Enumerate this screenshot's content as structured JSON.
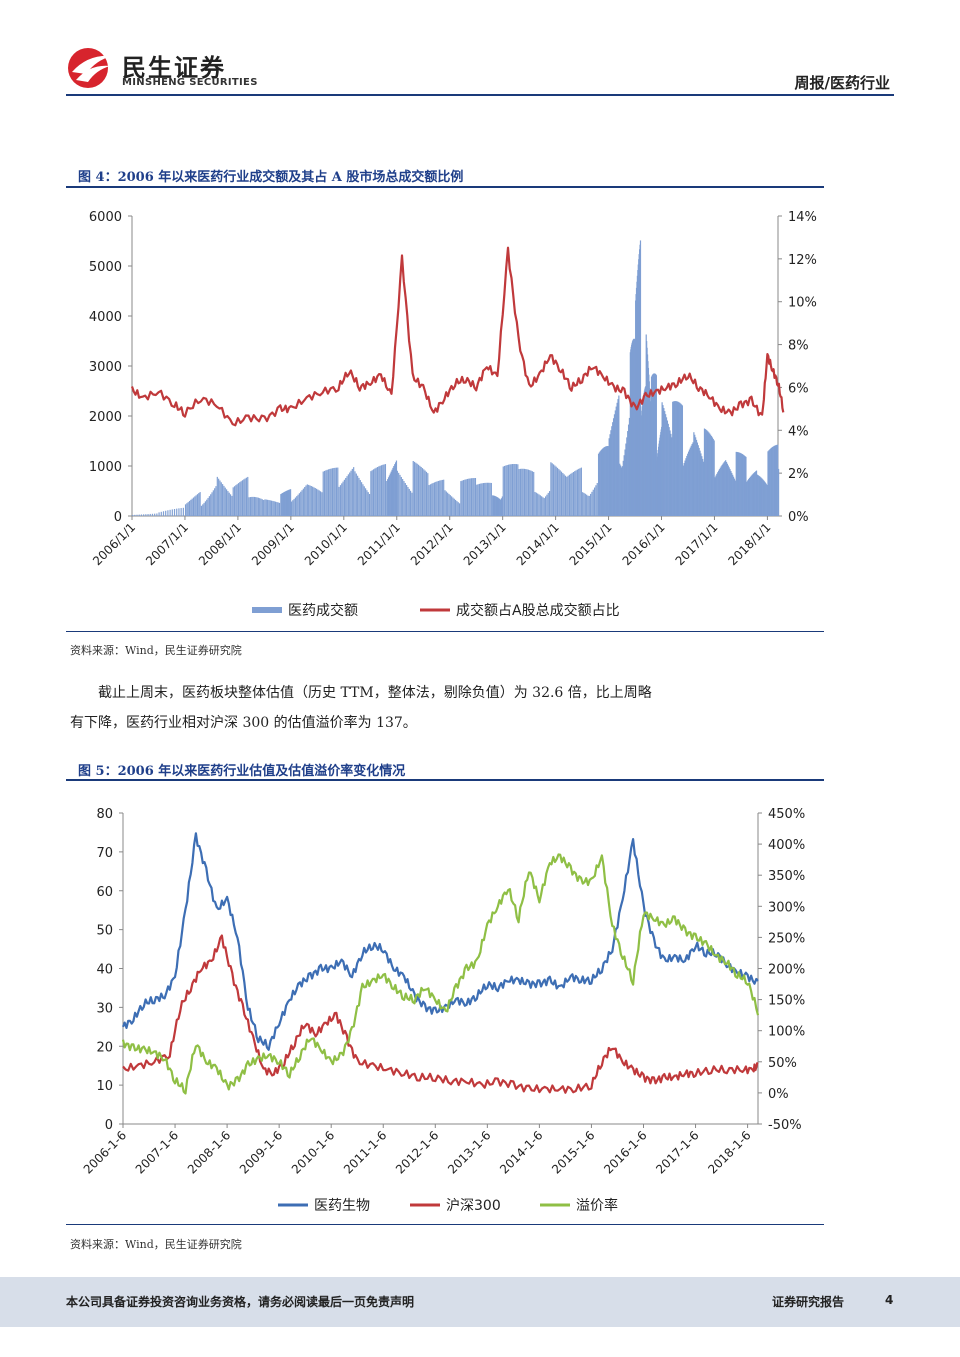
{
  "header": {
    "company_cn": "民生证券",
    "company_en": "MINSHENG SECURITIES",
    "report_type": "周报/医药行业"
  },
  "figure4": {
    "title": "图 4：2006 年以来医药行业成交额及其占 A 股市场总成交额比例",
    "source": "资料来源：Wind，民生证券研究院"
  },
  "paragraph": {
    "line1": "截止上周末，医药板块整体估值（历史 TTM，整体法，剔除负值）为 32.6 倍，比上周略",
    "line2": "有下降，医药行业相对沪深 300 的估值溢价率为 137。"
  },
  "figure5": {
    "title": "图 5：2006 年以来医药行业估值及估值溢价率变化情况",
    "source": "资料来源：Wind，民生证券研究院"
  },
  "footer": {
    "disclaimer": "本公司具备证券投资咨询业务资格，请务必阅读最后一页免责声明",
    "doc_type": "证券研究报告",
    "page_number": "4"
  },
  "colors": {
    "brand_red": "#d7242d",
    "navy": "#1a3a7a",
    "bar_blue": "#7f9fd3",
    "line_red": "#c0393b",
    "line_blue": "#3d6eb4",
    "line_green": "#8fbf45"
  },
  "chart_data": [
    {
      "type": "bar+line",
      "title": "图 4：2006 年以来医药行业成交额及其占 A 股市场总成交额比例",
      "x_tick_labels": [
        "2006/1/1",
        "2007/1/1",
        "2008/1/1",
        "2009/1/1",
        "2010/1/1",
        "2011/1/1",
        "2012/1/1",
        "2013/1/1",
        "2014/1/1",
        "2015/1/1",
        "2016/1/1",
        "2017/1/1",
        "2018/1/1"
      ],
      "left_axis": {
        "min": 0,
        "max": 6000,
        "ticks": [
          "0",
          "1000",
          "2000",
          "3000",
          "4000",
          "5000",
          "6000"
        ]
      },
      "right_axis": {
        "min": 0,
        "max": 0.14,
        "ticks": [
          "0%",
          "2%",
          "4%",
          "6%",
          "8%",
          "10%",
          "12%",
          "14%"
        ]
      },
      "series": [
        {
          "name": "医药成交额",
          "kind": "bar",
          "axis": "left",
          "x": [
            2006.0,
            2006.5,
            2007.0,
            2007.3,
            2007.6,
            2007.9,
            2008.2,
            2008.5,
            2008.8,
            2009.0,
            2009.3,
            2009.6,
            2009.9,
            2010.2,
            2010.5,
            2010.8,
            2011.0,
            2011.3,
            2011.6,
            2011.9,
            2012.2,
            2012.5,
            2012.8,
            2013.0,
            2013.3,
            2013.6,
            2013.9,
            2014.2,
            2014.5,
            2014.8,
            2015.0,
            2015.2,
            2015.4,
            2015.5,
            2015.6,
            2015.7,
            2015.8,
            2015.9,
            2016.0,
            2016.2,
            2016.4,
            2016.6,
            2016.8,
            2017.0,
            2017.2,
            2017.4,
            2017.6,
            2017.8,
            2018.0,
            2018.2
          ],
          "values": [
            60,
            80,
            250,
            500,
            900,
            600,
            800,
            400,
            450,
            550,
            800,
            900,
            1000,
            1200,
            900,
            1100,
            1300,
            1100,
            900,
            800,
            700,
            850,
            700,
            1000,
            1200,
            900,
            1100,
            950,
            1000,
            1300,
            1800,
            2500,
            3500,
            4800,
            5600,
            4000,
            3000,
            2800,
            2600,
            2400,
            2200,
            2000,
            1800,
            1500,
            1400,
            1300,
            1200,
            1100,
            1300,
            1500
          ]
        },
        {
          "name": "成交额占A股总成交额占比",
          "kind": "line",
          "axis": "right",
          "x": [
            2006.0,
            2006.2,
            2006.5,
            2006.8,
            2007.0,
            2007.3,
            2007.6,
            2007.9,
            2008.2,
            2008.5,
            2008.8,
            2009.0,
            2009.3,
            2009.6,
            2009.9,
            2010.1,
            2010.3,
            2010.5,
            2010.7,
            2010.9,
            2011.1,
            2011.3,
            2011.5,
            2011.7,
            2011.9,
            2012.1,
            2012.3,
            2012.5,
            2012.7,
            2012.9,
            2013.1,
            2013.3,
            2013.5,
            2013.7,
            2013.9,
            2014.1,
            2014.3,
            2014.5,
            2014.7,
            2014.9,
            2015.1,
            2015.3,
            2015.5,
            2015.7,
            2015.9,
            2016.1,
            2016.3,
            2016.5,
            2016.7,
            2016.9,
            2017.1,
            2017.3,
            2017.5,
            2017.7,
            2017.9,
            2018.0,
            2018.1,
            2018.2,
            2018.3
          ],
          "values": [
            0.059,
            0.055,
            0.058,
            0.052,
            0.048,
            0.055,
            0.052,
            0.043,
            0.046,
            0.045,
            0.05,
            0.05,
            0.055,
            0.058,
            0.06,
            0.068,
            0.06,
            0.062,
            0.066,
            0.056,
            0.12,
            0.065,
            0.06,
            0.048,
            0.055,
            0.062,
            0.064,
            0.06,
            0.07,
            0.065,
            0.124,
            0.082,
            0.06,
            0.066,
            0.075,
            0.068,
            0.06,
            0.064,
            0.07,
            0.065,
            0.06,
            0.058,
            0.05,
            0.056,
            0.058,
            0.06,
            0.062,
            0.066,
            0.06,
            0.056,
            0.05,
            0.048,
            0.052,
            0.054,
            0.046,
            0.075,
            0.068,
            0.062,
            0.05
          ]
        }
      ],
      "legend": [
        "医药成交额",
        "成交额占A股总成交额占比"
      ]
    },
    {
      "type": "line",
      "title": "图 5：2006 年以来医药行业估值及估值溢价率变化情况",
      "x_tick_labels": [
        "2006-1-6",
        "2007-1-6",
        "2008-1-6",
        "2009-1-6",
        "2010-1-6",
        "2011-1-6",
        "2012-1-6",
        "2013-1-6",
        "2014-1-6",
        "2015-1-6",
        "2016-1-6",
        "2017-1-6",
        "2018-1-6"
      ],
      "left_axis": {
        "min": 0,
        "max": 80,
        "ticks": [
          "0",
          "10",
          "20",
          "30",
          "40",
          "50",
          "60",
          "70",
          "80"
        ]
      },
      "right_axis": {
        "min": -0.5,
        "max": 4.5,
        "ticks": [
          "-50%",
          "0%",
          "50%",
          "100%",
          "150%",
          "200%",
          "250%",
          "300%",
          "350%",
          "400%",
          "450%"
        ]
      },
      "series": [
        {
          "name": "医药生物",
          "axis": "left",
          "x": [
            2006.0,
            2006.2,
            2006.4,
            2006.6,
            2006.8,
            2007.0,
            2007.2,
            2007.4,
            2007.6,
            2007.8,
            2008.0,
            2008.2,
            2008.4,
            2008.6,
            2008.8,
            2009.0,
            2009.2,
            2009.4,
            2009.6,
            2009.8,
            2010.0,
            2010.2,
            2010.4,
            2010.6,
            2010.8,
            2011.0,
            2011.2,
            2011.4,
            2011.6,
            2011.8,
            2012.0,
            2012.2,
            2012.4,
            2012.6,
            2012.8,
            2013.0,
            2013.2,
            2013.4,
            2013.6,
            2013.8,
            2014.0,
            2014.2,
            2014.4,
            2014.6,
            2014.8,
            2015.0,
            2015.2,
            2015.4,
            2015.6,
            2015.8,
            2016.0,
            2016.2,
            2016.4,
            2016.6,
            2016.8,
            2017.0,
            2017.2,
            2017.4,
            2017.6,
            2017.8,
            2018.0,
            2018.2
          ],
          "values": [
            25,
            27,
            31,
            32,
            33,
            38,
            55,
            74,
            65,
            55,
            58,
            48,
            30,
            22,
            20,
            26,
            32,
            36,
            38,
            40,
            40,
            42,
            38,
            44,
            46,
            45,
            40,
            38,
            33,
            30,
            29,
            30,
            32,
            31,
            33,
            36,
            35,
            37,
            37,
            36,
            36,
            37,
            35,
            38,
            37,
            37,
            40,
            45,
            58,
            73,
            56,
            47,
            42,
            43,
            42,
            46,
            44,
            44,
            41,
            39,
            38,
            36
          ]
        },
        {
          "name": "沪深300",
          "axis": "left",
          "x": [
            2006.0,
            2006.3,
            2006.6,
            2006.9,
            2007.1,
            2007.3,
            2007.5,
            2007.7,
            2007.9,
            2008.1,
            2008.3,
            2008.5,
            2008.7,
            2008.9,
            2009.1,
            2009.3,
            2009.5,
            2009.7,
            2009.9,
            2010.1,
            2010.3,
            2010.5,
            2010.8,
            2011.1,
            2011.4,
            2011.7,
            2012.0,
            2012.3,
            2012.6,
            2012.9,
            2013.2,
            2013.5,
            2013.8,
            2014.1,
            2014.4,
            2014.7,
            2015.0,
            2015.2,
            2015.4,
            2015.6,
            2015.8,
            2016.0,
            2016.2,
            2016.4,
            2016.6,
            2016.8,
            2017.0,
            2017.3,
            2017.6,
            2017.9,
            2018.1,
            2018.2
          ],
          "values": [
            14,
            15,
            16,
            18,
            30,
            35,
            40,
            42,
            48,
            38,
            30,
            22,
            14,
            13,
            16,
            21,
            26,
            23,
            26,
            28,
            22,
            16,
            15,
            14,
            13,
            12,
            12,
            11,
            11,
            10,
            11,
            10,
            9,
            9,
            9,
            9,
            10,
            16,
            20,
            16,
            14,
            12,
            11,
            12,
            12,
            13,
            13,
            14,
            14,
            14,
            14,
            15
          ]
        },
        {
          "name": "溢价率",
          "axis": "right",
          "x": [
            2006.0,
            2006.2,
            2006.4,
            2006.6,
            2006.8,
            2007.0,
            2007.2,
            2007.4,
            2007.6,
            2007.8,
            2008.0,
            2008.2,
            2008.4,
            2008.6,
            2008.8,
            2009.0,
            2009.2,
            2009.4,
            2009.6,
            2009.8,
            2010.0,
            2010.2,
            2010.4,
            2010.6,
            2010.8,
            2011.0,
            2011.2,
            2011.4,
            2011.6,
            2011.8,
            2012.0,
            2012.2,
            2012.4,
            2012.6,
            2012.8,
            2013.0,
            2013.2,
            2013.4,
            2013.6,
            2013.8,
            2014.0,
            2014.2,
            2014.4,
            2014.6,
            2014.8,
            2015.0,
            2015.2,
            2015.4,
            2015.6,
            2015.8,
            2016.0,
            2016.2,
            2016.4,
            2016.6,
            2016.8,
            2017.0,
            2017.2,
            2017.4,
            2017.6,
            2017.8,
            2018.0,
            2018.2
          ],
          "values": [
            0.8,
            0.72,
            0.7,
            0.65,
            0.55,
            0.2,
            0.05,
            0.8,
            0.5,
            0.4,
            0.1,
            0.2,
            0.45,
            0.55,
            0.6,
            0.5,
            0.3,
            0.6,
            0.9,
            0.7,
            0.5,
            0.6,
            1.0,
            1.7,
            1.8,
            1.9,
            1.7,
            1.55,
            1.5,
            1.7,
            1.5,
            1.3,
            1.7,
            2.0,
            2.1,
            2.7,
            3.0,
            3.3,
            2.8,
            3.6,
            3.1,
            3.7,
            3.8,
            3.6,
            3.4,
            3.4,
            3.8,
            2.7,
            2.2,
            1.8,
            2.9,
            2.8,
            2.7,
            2.8,
            2.6,
            2.5,
            2.4,
            2.2,
            2.1,
            1.9,
            1.8,
            1.3
          ]
        }
      ],
      "legend": [
        "医药生物",
        "沪深300",
        "溢价率"
      ]
    }
  ]
}
